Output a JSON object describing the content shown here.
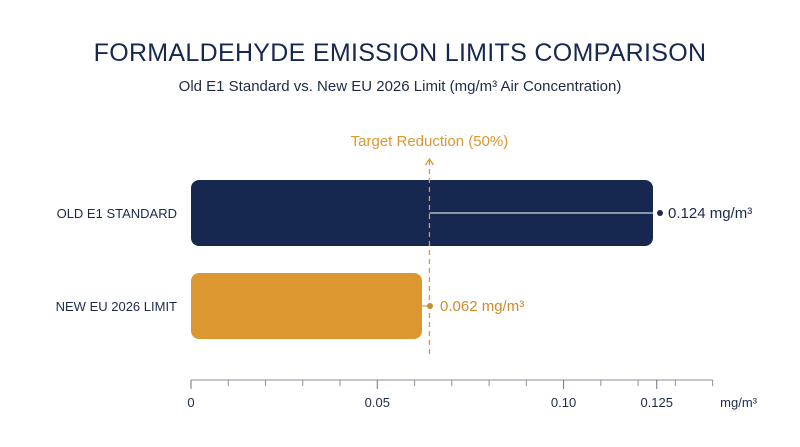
{
  "chart_data": {
    "type": "bar",
    "orientation": "horizontal",
    "title": "FORMALDEHYDE EMISSION LIMITS COMPARISON",
    "subtitle": "Old E1 Standard vs. New EU 2026 Limit (mg/m³ Air Concentration)",
    "xlabel": "mg/m³",
    "xlim": [
      0,
      0.14
    ],
    "categories": [
      "OLD E1 STANDARD",
      "NEW EU 2026 LIMIT"
    ],
    "values": [
      0.124,
      0.062
    ],
    "value_labels": [
      "0.124 mg/m³",
      "0.062 mg/m³"
    ],
    "colors": [
      "#16284f",
      "#dc9731"
    ],
    "label_colors": [
      "#1b2a4a",
      "#c98d2b"
    ],
    "x_ticks_major": [
      0,
      0.05,
      0.1,
      0.125
    ],
    "x_tick_labels": [
      "0",
      "0.05",
      "0.10",
      "0.125"
    ],
    "x_ticks_minor": [
      0.01,
      0.02,
      0.03,
      0.04,
      0.06,
      0.07,
      0.08,
      0.09,
      0.11,
      0.12,
      0.13
    ],
    "annotation": {
      "text": "Target Reduction (50%)",
      "x": 0.064,
      "color": "#dc9731"
    },
    "grid": false,
    "legend": "none"
  }
}
